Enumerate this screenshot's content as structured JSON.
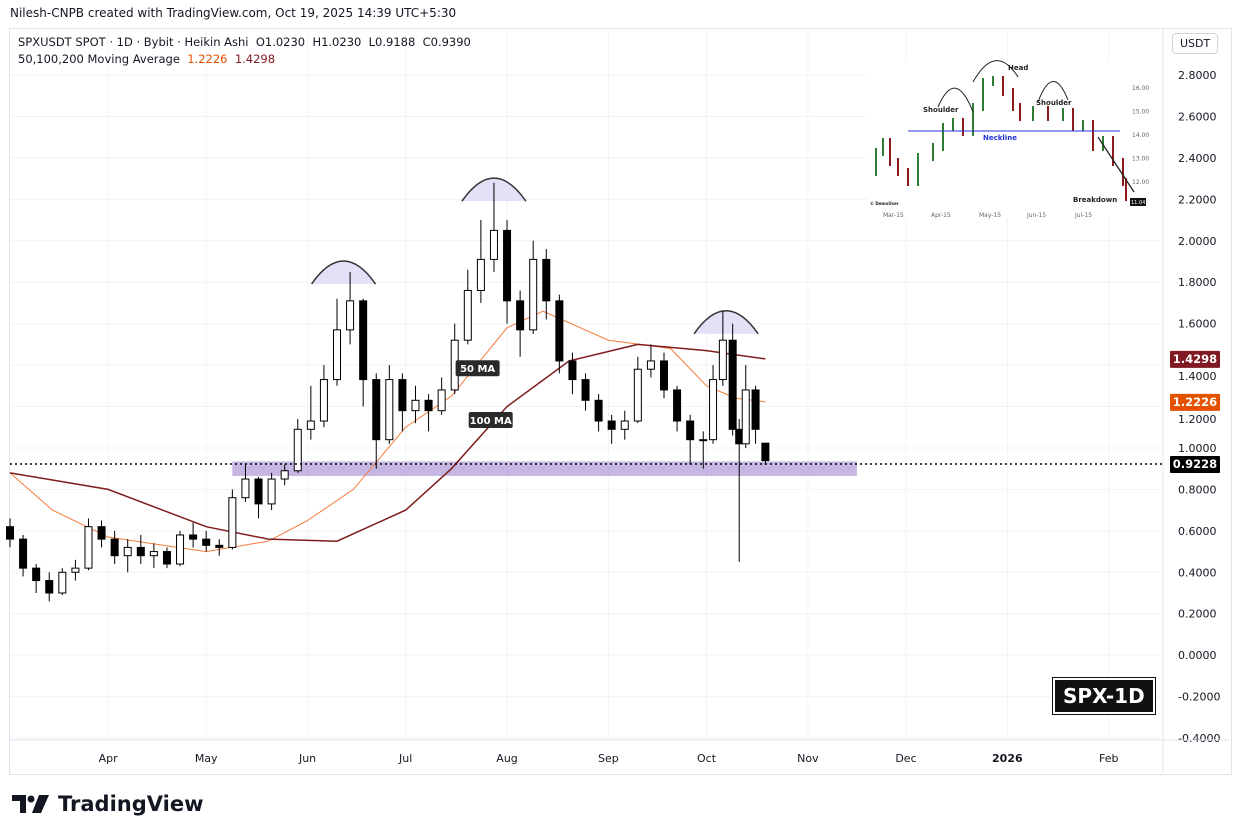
{
  "credit": "Nilesh-CNPB created with TradingView.com, Oct 19, 2025 14:39 UTC+5:30",
  "legend": {
    "symbol": "SPXUSDT SPOT · 1D · Bybit · Heikin Ashi",
    "o": "O1.0230",
    "h": "H1.0230",
    "l": "L0.9188",
    "c": "C0.9390",
    "ma_label": "50,100,200 Moving Average",
    "ma50": "1.2226",
    "ma100": "1.4298"
  },
  "currency_button": "USDT",
  "brand": "TradingView",
  "badge": "SPX-1D",
  "colors": {
    "up": "#ffffff",
    "down": "#000000",
    "ma50": "#f57c3a",
    "ma100": "#7f1d1d",
    "zone": "#b39ddb",
    "ma50_tag": "#e65100",
    "ma100_tag": "#801922"
  },
  "chart_data": {
    "type": "candlestick",
    "title": "",
    "ylim": [
      -0.4,
      2.8
    ],
    "y_ticks": [
      "2.8000",
      "2.6000",
      "2.4000",
      "2.2000",
      "2.0000",
      "1.8000",
      "1.6000",
      "1.4000",
      "1.2000",
      "1.0000",
      "0.8000",
      "0.6000",
      "0.4000",
      "0.2000",
      "0.0000",
      "-0.2000",
      "-0.4000"
    ],
    "x_ticks": [
      {
        "label": "Apr",
        "date": "2025-04-01"
      },
      {
        "label": "May",
        "date": "2025-05-01"
      },
      {
        "label": "Jun",
        "date": "2025-06-01"
      },
      {
        "label": "Jul",
        "date": "2025-07-01"
      },
      {
        "label": "Aug",
        "date": "2025-08-01"
      },
      {
        "label": "Sep",
        "date": "2025-09-01"
      },
      {
        "label": "Oct",
        "date": "2025-10-01"
      },
      {
        "label": "Nov",
        "date": "2025-11-01"
      },
      {
        "label": "Dec",
        "date": "2025-12-01"
      },
      {
        "label": "2026",
        "date": "2026-01-01"
      },
      {
        "label": "Feb",
        "date": "2026-02-01"
      }
    ],
    "xlim": [
      "2025-03-02",
      "2026-02-13"
    ],
    "candles": [
      [
        "2025-03-02",
        0.62,
        0.66,
        0.52,
        0.56
      ],
      [
        "2025-03-06",
        0.56,
        0.58,
        0.38,
        0.42
      ],
      [
        "2025-03-10",
        0.42,
        0.44,
        0.3,
        0.36
      ],
      [
        "2025-03-14",
        0.36,
        0.4,
        0.26,
        0.3
      ],
      [
        "2025-03-18",
        0.3,
        0.42,
        0.29,
        0.4
      ],
      [
        "2025-03-22",
        0.4,
        0.46,
        0.36,
        0.42
      ],
      [
        "2025-03-26",
        0.42,
        0.66,
        0.41,
        0.62
      ],
      [
        "2025-03-30",
        0.62,
        0.65,
        0.52,
        0.56
      ],
      [
        "2025-04-03",
        0.56,
        0.6,
        0.44,
        0.48
      ],
      [
        "2025-04-07",
        0.48,
        0.56,
        0.4,
        0.52
      ],
      [
        "2025-04-11",
        0.52,
        0.58,
        0.44,
        0.48
      ],
      [
        "2025-04-15",
        0.48,
        0.54,
        0.42,
        0.5
      ],
      [
        "2025-04-19",
        0.5,
        0.52,
        0.42,
        0.44
      ],
      [
        "2025-04-23",
        0.44,
        0.6,
        0.43,
        0.58
      ],
      [
        "2025-04-27",
        0.58,
        0.64,
        0.52,
        0.56
      ],
      [
        "2025-05-01",
        0.56,
        0.6,
        0.5,
        0.53
      ],
      [
        "2025-05-05",
        0.53,
        0.56,
        0.48,
        0.52
      ],
      [
        "2025-05-09",
        0.52,
        0.8,
        0.51,
        0.76
      ],
      [
        "2025-05-13",
        0.76,
        0.92,
        0.74,
        0.85
      ],
      [
        "2025-05-17",
        0.85,
        0.86,
        0.66,
        0.73
      ],
      [
        "2025-05-21",
        0.73,
        0.88,
        0.7,
        0.85
      ],
      [
        "2025-05-25",
        0.85,
        0.92,
        0.82,
        0.89
      ],
      [
        "2025-05-29",
        0.89,
        1.14,
        0.88,
        1.09
      ],
      [
        "2025-06-02",
        1.09,
        1.3,
        1.04,
        1.13
      ],
      [
        "2025-06-06",
        1.13,
        1.4,
        1.1,
        1.33
      ],
      [
        "2025-06-10",
        1.33,
        1.72,
        1.3,
        1.57
      ],
      [
        "2025-06-14",
        1.57,
        1.85,
        1.5,
        1.71
      ],
      [
        "2025-06-18",
        1.71,
        1.72,
        1.2,
        1.33
      ],
      [
        "2025-06-22",
        1.33,
        1.36,
        0.9,
        1.04
      ],
      [
        "2025-06-26",
        1.04,
        1.4,
        1.02,
        1.33
      ],
      [
        "2025-06-30",
        1.33,
        1.36,
        1.08,
        1.18
      ],
      [
        "2025-07-04",
        1.18,
        1.3,
        1.12,
        1.23
      ],
      [
        "2025-07-08",
        1.23,
        1.26,
        1.08,
        1.18
      ],
      [
        "2025-07-12",
        1.18,
        1.34,
        1.16,
        1.28
      ],
      [
        "2025-07-16",
        1.28,
        1.6,
        1.26,
        1.52
      ],
      [
        "2025-07-20",
        1.52,
        1.86,
        1.5,
        1.76
      ],
      [
        "2025-07-24",
        1.76,
        2.1,
        1.7,
        1.91
      ],
      [
        "2025-07-28",
        1.91,
        2.28,
        1.85,
        2.05
      ],
      [
        "2025-08-01",
        2.05,
        2.1,
        1.6,
        1.71
      ],
      [
        "2025-08-05",
        1.71,
        1.76,
        1.44,
        1.57
      ],
      [
        "2025-08-09",
        1.57,
        2.0,
        1.55,
        1.91
      ],
      [
        "2025-08-13",
        1.91,
        1.96,
        1.62,
        1.71
      ],
      [
        "2025-08-17",
        1.71,
        1.74,
        1.36,
        1.42
      ],
      [
        "2025-08-21",
        1.42,
        1.46,
        1.26,
        1.33
      ],
      [
        "2025-08-25",
        1.33,
        1.36,
        1.18,
        1.23
      ],
      [
        "2025-08-29",
        1.23,
        1.26,
        1.08,
        1.13
      ],
      [
        "2025-09-02",
        1.13,
        1.16,
        1.02,
        1.09
      ],
      [
        "2025-09-06",
        1.09,
        1.18,
        1.04,
        1.13
      ],
      [
        "2025-09-10",
        1.13,
        1.44,
        1.12,
        1.38
      ],
      [
        "2025-09-14",
        1.38,
        1.5,
        1.34,
        1.42
      ],
      [
        "2025-09-18",
        1.42,
        1.46,
        1.24,
        1.28
      ],
      [
        "2025-09-22",
        1.28,
        1.3,
        1.08,
        1.13
      ],
      [
        "2025-09-26",
        1.13,
        1.16,
        0.92,
        1.04
      ],
      [
        "2025-09-30",
        1.04,
        1.08,
        0.9,
        1.04
      ],
      [
        "2025-10-03",
        1.04,
        1.4,
        1.02,
        1.33
      ],
      [
        "2025-10-06",
        1.33,
        1.66,
        1.3,
        1.52
      ],
      [
        "2025-10-09",
        1.52,
        1.6,
        1.06,
        1.09
      ],
      [
        "2025-10-11",
        1.09,
        1.14,
        0.45,
        1.02
      ],
      [
        "2025-10-13",
        1.02,
        1.4,
        1.0,
        1.28
      ],
      [
        "2025-10-16",
        1.28,
        1.3,
        1.02,
        1.09
      ],
      [
        "2025-10-19",
        1.023,
        1.023,
        0.9188,
        0.939
      ]
    ],
    "series": [
      {
        "name": "50 MA",
        "points": [
          [
            "2025-03-02",
            0.88
          ],
          [
            "2025-03-15",
            0.7
          ],
          [
            "2025-04-01",
            0.57
          ],
          [
            "2025-05-01",
            0.5
          ],
          [
            "2025-05-20",
            0.55
          ],
          [
            "2025-06-01",
            0.65
          ],
          [
            "2025-06-15",
            0.8
          ],
          [
            "2025-07-01",
            1.1
          ],
          [
            "2025-07-15",
            1.25
          ],
          [
            "2025-08-01",
            1.58
          ],
          [
            "2025-08-12",
            1.66
          ],
          [
            "2025-09-01",
            1.52
          ],
          [
            "2025-09-20",
            1.48
          ],
          [
            "2025-10-01",
            1.3
          ],
          [
            "2025-10-10",
            1.24
          ],
          [
            "2025-10-19",
            1.2226
          ]
        ]
      },
      {
        "name": "100 MA",
        "points": [
          [
            "2025-03-02",
            0.88
          ],
          [
            "2025-04-01",
            0.8
          ],
          [
            "2025-05-01",
            0.62
          ],
          [
            "2025-05-20",
            0.56
          ],
          [
            "2025-06-10",
            0.55
          ],
          [
            "2025-07-01",
            0.7
          ],
          [
            "2025-07-15",
            0.9
          ],
          [
            "2025-08-01",
            1.2
          ],
          [
            "2025-08-20",
            1.42
          ],
          [
            "2025-09-10",
            1.5
          ],
          [
            "2025-10-01",
            1.47
          ],
          [
            "2025-10-19",
            1.4298
          ]
        ]
      }
    ],
    "last_price": "0.9228",
    "support_zone": {
      "from": "2025-05-09",
      "to": "2025-11-16",
      "low": 0.865,
      "high": 0.935
    },
    "annotations": [
      {
        "text": "50 MA",
        "date": "2025-07-23",
        "y": 1.38
      },
      {
        "text": "100 MA",
        "date": "2025-07-27",
        "y": 1.13
      }
    ],
    "arcs": [
      {
        "date": "2025-06-12",
        "y": 1.82
      },
      {
        "date": "2025-07-28",
        "y": 2.22
      },
      {
        "date": "2025-10-07",
        "y": 1.58
      }
    ],
    "inset": {
      "labels": {
        "shoulder_left": "Shoulder",
        "head": "Head",
        "shoulder_right": "Shoulder",
        "neckline": "Neckline",
        "breakdown": "Breakdown",
        "price": "11.04",
        "credit": "© DemoUser"
      },
      "y_ticks": [
        "16.00",
        "15.00",
        "14.00",
        "13.00",
        "12.00"
      ],
      "x_ticks": [
        "Mar-15",
        "Apr-15",
        "May-15",
        "Jun-15",
        "Jul-15"
      ]
    }
  }
}
